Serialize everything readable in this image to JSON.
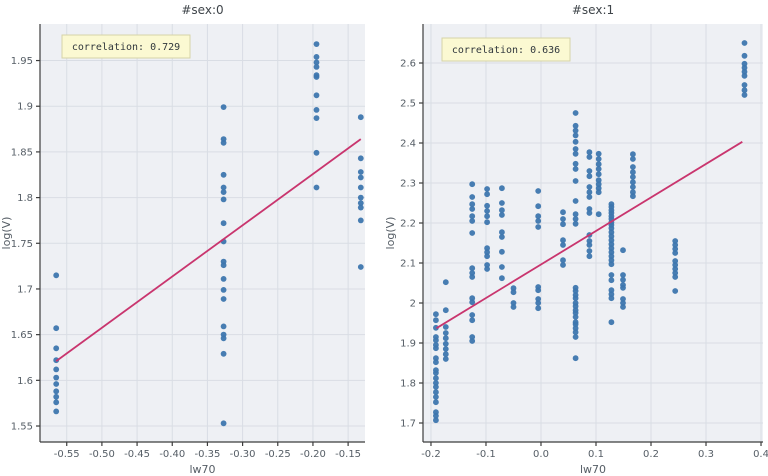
{
  "figure": {
    "background": "#ffffff"
  },
  "styles": {
    "point_color": "#3d76ae",
    "line_color": "#c9356e",
    "plot_bg": "#eef0f4",
    "grid_color": "#d9dde4",
    "spine_color": "#3c3c3c",
    "tick_label_color": "#565e66",
    "axis_label_color": "#565e66",
    "title_color": "#3f454a",
    "annotation_bg": "#fbf9d2",
    "annotation_border": "#d6d3a8",
    "annotation_text_color": "#30373c"
  },
  "chart_data": [
    {
      "type": "scatter",
      "title": "#sex:0",
      "annotation": "correlation: 0.729",
      "xlabel": "lw70",
      "ylabel": "log(V)",
      "xlim": [
        -0.588,
        -0.126
      ],
      "ylim": [
        1.5325,
        1.99
      ],
      "x_tick_values": [
        -0.55,
        -0.5,
        -0.45,
        -0.4,
        -0.35,
        -0.3,
        -0.25,
        -0.2,
        -0.15
      ],
      "x_tick_labels": [
        "-0.55",
        "-0.50",
        "-0.45",
        "-0.40",
        "-0.35",
        "-0.30",
        "-0.25",
        "-0.20",
        "-0.15"
      ],
      "y_tick_values": [
        1.55,
        1.6,
        1.65,
        1.7,
        1.75,
        1.8,
        1.85,
        1.9,
        1.95
      ],
      "y_tick_labels": [
        "1.55",
        "1.6",
        "1.65",
        "1.7",
        "1.75",
        "1.8",
        "1.85",
        "1.9",
        "1.95"
      ],
      "grid": true,
      "legend": "none",
      "trend": {
        "x": [
          -0.565,
          -0.132
        ],
        "y": [
          1.621,
          1.864
        ]
      },
      "columns": [
        {
          "x": -0.565,
          "ys": [
            1.715,
            1.657,
            1.635,
            1.622,
            1.612,
            1.603,
            1.596,
            1.588,
            1.582,
            1.576,
            1.566
          ]
        },
        {
          "x": -0.327,
          "ys": [
            1.899,
            1.864,
            1.86,
            1.825,
            1.811,
            1.806,
            1.798,
            1.772,
            1.752,
            1.73,
            1.726,
            1.711,
            1.699,
            1.689,
            1.659,
            1.65,
            1.646,
            1.629,
            1.553
          ]
        },
        {
          "x": -0.195,
          "ys": [
            1.968,
            1.954,
            1.948,
            1.943,
            1.934,
            1.932,
            1.912,
            1.896,
            1.887,
            1.849,
            1.811
          ]
        },
        {
          "x": -0.132,
          "ys": [
            1.888,
            1.843,
            1.828,
            1.822,
            1.811,
            1.8,
            1.794,
            1.789,
            1.775,
            1.724
          ]
        }
      ]
    },
    {
      "type": "scatter",
      "title": "#sex:1",
      "annotation": "correlation: 0.636",
      "xlabel": "lw70",
      "ylabel": "log(V)",
      "xlim": [
        -0.2145,
        0.4036
      ],
      "ylim": [
        1.6525,
        2.6975
      ],
      "x_tick_values": [
        -0.2,
        -0.1,
        0,
        0.1,
        0.2,
        0.3,
        0.4
      ],
      "x_tick_labels": [
        "-0.2",
        "-0.1",
        "0.0",
        "0.1",
        "0.2",
        "0.3",
        "0.4"
      ],
      "y_tick_values": [
        1.7,
        1.8,
        1.9,
        2,
        2.1,
        2.2,
        2.3,
        2.4,
        2.5,
        2.6
      ],
      "y_tick_labels": [
        "1.7",
        "1.8",
        "1.9",
        "2",
        "2.1",
        "2.2",
        "2.3",
        "2.4",
        "2.5",
        "2.6"
      ],
      "grid": true,
      "legend": "none",
      "trend": {
        "x": [
          -0.19,
          0.366
        ],
        "y": [
          1.937,
          2.403
        ]
      },
      "columns": [
        {
          "x": -0.191,
          "ys": [
            1.972,
            1.957,
            1.938,
            1.915,
            1.907,
            1.895,
            1.887,
            1.862,
            1.852,
            1.832,
            1.825,
            1.812,
            1.8,
            1.79,
            1.777,
            1.765,
            1.752,
            1.727,
            1.718,
            1.707
          ]
        },
        {
          "x": -0.173,
          "ys": [
            2.052,
            1.982,
            1.94,
            1.925,
            1.912,
            1.898,
            1.885,
            1.872,
            1.86
          ]
        },
        {
          "x": -0.125,
          "ys": [
            2.297,
            2.265,
            2.247,
            2.235,
            2.217,
            2.205,
            2.175,
            2.087,
            2.075,
            2.065,
            2.012,
            2.002,
            1.97,
            1.957,
            1.915,
            1.905
          ]
        },
        {
          "x": -0.098,
          "ys": [
            2.285,
            2.272,
            2.243,
            2.23,
            2.217,
            2.202,
            2.137,
            2.127,
            2.117,
            2.095,
            2.085
          ]
        },
        {
          "x": -0.071,
          "ys": [
            2.287,
            2.25,
            2.232,
            2.22,
            2.177,
            2.165,
            2.128,
            2.09,
            2.062
          ]
        },
        {
          "x": -0.05,
          "ys": [
            2.037,
            2.027,
            2.0,
            1.99
          ]
        },
        {
          "x": -0.005,
          "ys": [
            2.28,
            2.242,
            2.217,
            2.205,
            2.19,
            2.04,
            2.032,
            2.01,
            2.0,
            1.987
          ]
        },
        {
          "x": 0.04,
          "ys": [
            2.227,
            2.21,
            2.197,
            2.157,
            2.145,
            2.107,
            2.095
          ]
        },
        {
          "x": 0.063,
          "ys": [
            2.475,
            2.443,
            2.431,
            2.419,
            2.403,
            2.385,
            2.373,
            2.348,
            2.335,
            2.305,
            2.255,
            2.222,
            2.21,
            2.198,
            2.038,
            2.03,
            2.02,
            2.012,
            2.0,
            1.992,
            1.982,
            1.975,
            1.965,
            1.952,
            1.947,
            1.937,
            1.927,
            1.915,
            1.862
          ]
        },
        {
          "x": 0.088,
          "ys": [
            2.377,
            2.365,
            2.33,
            2.317,
            2.29,
            2.277,
            2.265,
            2.235,
            2.225,
            2.17,
            2.155,
            2.145,
            2.13,
            2.117
          ]
        },
        {
          "x": 0.105,
          "ys": [
            2.373,
            2.36,
            2.347,
            2.335,
            2.322,
            2.307,
            2.297,
            2.287,
            2.277,
            2.222
          ]
        },
        {
          "x": 0.128,
          "ys": [
            2.247,
            2.24,
            2.232,
            2.225,
            2.217,
            2.21,
            2.202,
            2.195,
            2.187,
            2.177,
            2.167,
            2.157,
            2.147,
            2.137,
            2.127,
            2.117,
            2.107,
            2.097,
            2.07,
            2.057,
            2.032,
            2.022,
            2.012,
            1.952
          ]
        },
        {
          "x": 0.149,
          "ys": [
            2.132,
            2.07,
            2.058,
            2.045,
            2.038,
            2.01,
            2.0,
            1.99
          ]
        },
        {
          "x": 0.167,
          "ys": [
            2.372,
            2.36,
            2.34,
            2.327,
            2.315,
            2.302,
            2.29,
            2.277,
            2.267
          ]
        },
        {
          "x": 0.244,
          "ys": [
            2.155,
            2.145,
            2.135,
            2.125,
            2.105,
            2.095,
            2.085,
            2.075,
            2.065,
            2.03
          ]
        },
        {
          "x": 0.37,
          "ys": [
            2.65,
            2.618,
            2.598,
            2.588,
            2.578,
            2.568,
            2.545,
            2.532,
            2.52
          ]
        }
      ]
    }
  ]
}
